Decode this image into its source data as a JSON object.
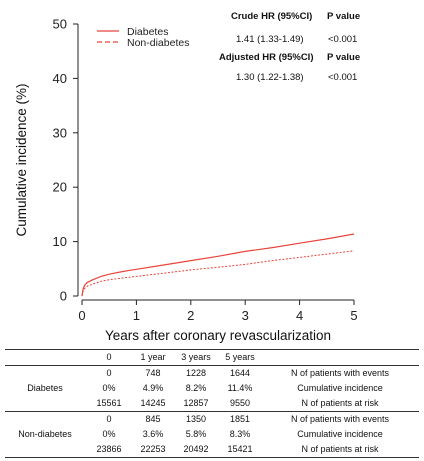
{
  "chart_data": {
    "type": "line",
    "xlabel": "Years after coronary revascularization",
    "ylabel": "Cumulative incidence (%)",
    "xlim": [
      0,
      5
    ],
    "ylim": [
      0,
      50
    ],
    "x_ticks": [
      "0",
      "1",
      "2",
      "3",
      "4",
      "5"
    ],
    "y_ticks": [
      "0",
      "10",
      "20",
      "30",
      "40",
      "50"
    ],
    "grid": false,
    "legend_position": "top-left",
    "series": [
      {
        "name": "Diabetes",
        "style": "solid",
        "color": "#e8443a",
        "points": [
          [
            0,
            0
          ],
          [
            0.02,
            1.3
          ],
          [
            0.05,
            2.0
          ],
          [
            0.1,
            2.5
          ],
          [
            0.2,
            3.0
          ],
          [
            0.35,
            3.6
          ],
          [
            0.5,
            4.0
          ],
          [
            0.75,
            4.5
          ],
          [
            1,
            4.9
          ],
          [
            1.5,
            5.7
          ],
          [
            2,
            6.5
          ],
          [
            2.5,
            7.3
          ],
          [
            3,
            8.2
          ],
          [
            3.5,
            8.9
          ],
          [
            4,
            9.7
          ],
          [
            4.5,
            10.5
          ],
          [
            5,
            11.4
          ]
        ]
      },
      {
        "name": "Non-diabetes",
        "style": "dashed",
        "color": "#e8443a",
        "points": [
          [
            0,
            0
          ],
          [
            0.02,
            0.9
          ],
          [
            0.05,
            1.4
          ],
          [
            0.1,
            1.8
          ],
          [
            0.2,
            2.2
          ],
          [
            0.35,
            2.7
          ],
          [
            0.5,
            3.0
          ],
          [
            0.75,
            3.3
          ],
          [
            1,
            3.6
          ],
          [
            1.5,
            4.2
          ],
          [
            2,
            4.8
          ],
          [
            2.5,
            5.3
          ],
          [
            3,
            5.8
          ],
          [
            3.5,
            6.5
          ],
          [
            4,
            7.1
          ],
          [
            4.5,
            7.7
          ],
          [
            5,
            8.3
          ]
        ]
      }
    ]
  },
  "hr_box": {
    "crude_title": "Crude HR (95%CI)",
    "p_title": "P value",
    "crude_value": "1.41 (1.33-1.49)",
    "crude_p": "<0.001",
    "adjusted_title": "Adjusted HR (95%CI)",
    "adjusted_p_title": "P value",
    "adjusted_value": "1.30 (1.22-1.38)",
    "adjusted_p": "<0.001"
  },
  "table": {
    "headers": [
      "0",
      "1 year",
      "3 years",
      "5 years"
    ],
    "groups": [
      {
        "name": "Diabetes",
        "rows": [
          {
            "values": [
              "0",
              "748",
              "1228",
              "1644"
            ],
            "label": "N of patients with events"
          },
          {
            "values": [
              "0%",
              "4.9%",
              "8.2%",
              "11.4%"
            ],
            "label": "Cumulative incidence"
          },
          {
            "values": [
              "15561",
              "14245",
              "12857",
              "9550"
            ],
            "label": "N of patients at risk"
          }
        ]
      },
      {
        "name": "Non-diabetes",
        "rows": [
          {
            "values": [
              "0",
              "845",
              "1350",
              "1851"
            ],
            "label": "N of patients with events"
          },
          {
            "values": [
              "0%",
              "3.6%",
              "5.8%",
              "8.3%"
            ],
            "label": "Cumulative incidence"
          },
          {
            "values": [
              "23866",
              "22253",
              "20492",
              "15421"
            ],
            "label": "N of patients at risk"
          }
        ]
      }
    ]
  }
}
